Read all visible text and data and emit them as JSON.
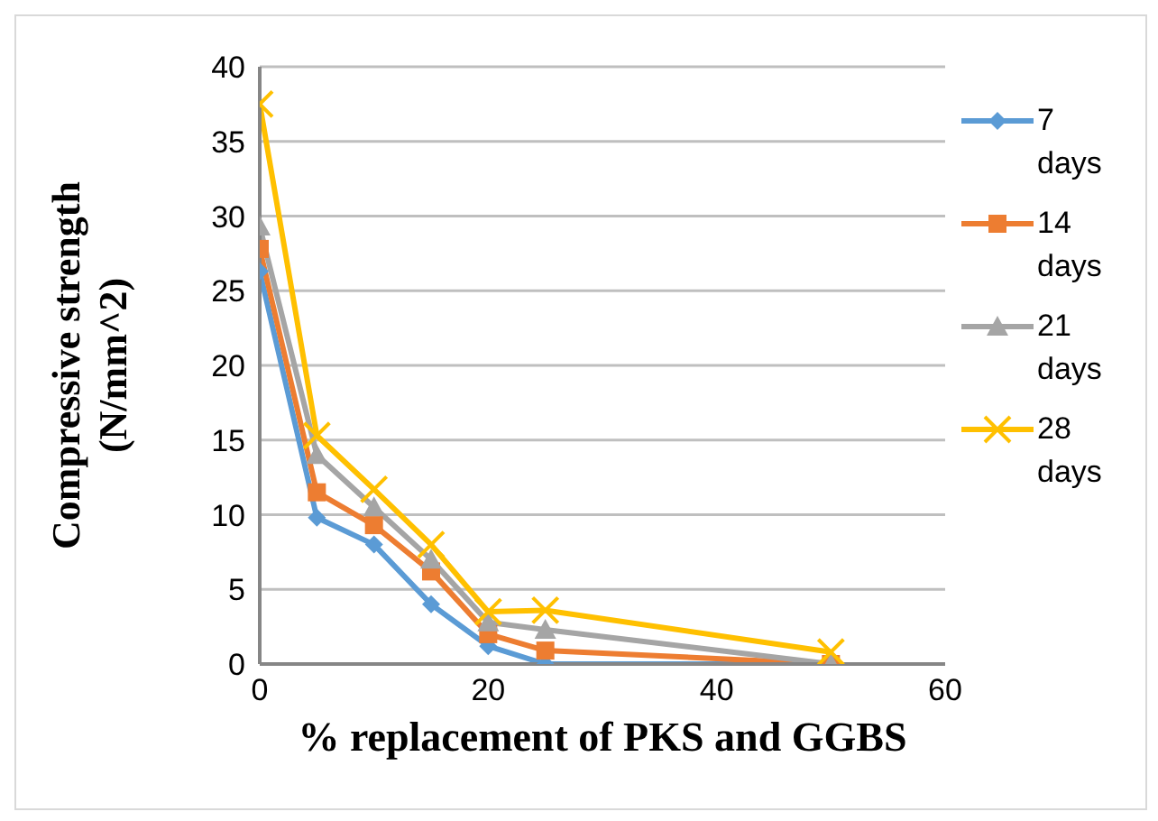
{
  "chart_data": {
    "type": "line",
    "xlabel": "% replacement of PKS and GGBS",
    "ylabel": "Compressive strength (N/mm^2)",
    "x": [
      0,
      5,
      10,
      15,
      20,
      25,
      50
    ],
    "xlim": [
      0,
      60
    ],
    "xticks": [
      0,
      20,
      40,
      60
    ],
    "ylim": [
      0,
      40
    ],
    "yticks": [
      0,
      5,
      10,
      15,
      20,
      25,
      30,
      35,
      40
    ],
    "grid": "y",
    "legend": "right",
    "series": [
      {
        "name": "7 days",
        "color": "#5b9bd5",
        "marker": "diamond",
        "values": [
          26.3,
          9.8,
          8.0,
          4.0,
          1.2,
          0,
          0
        ]
      },
      {
        "name": "14 days",
        "color": "#ed7d31",
        "marker": "square",
        "values": [
          27.8,
          11.5,
          9.3,
          6.2,
          2.0,
          0.9,
          0
        ]
      },
      {
        "name": "21 days",
        "color": "#a5a5a5",
        "marker": "triangle",
        "values": [
          29.3,
          14.0,
          10.5,
          7.0,
          2.8,
          2.3,
          0
        ]
      },
      {
        "name": "28 days",
        "color": "#ffc000",
        "marker": "cross",
        "values": [
          37.5,
          15.3,
          11.7,
          8.0,
          3.5,
          3.6,
          0.8
        ]
      }
    ]
  }
}
